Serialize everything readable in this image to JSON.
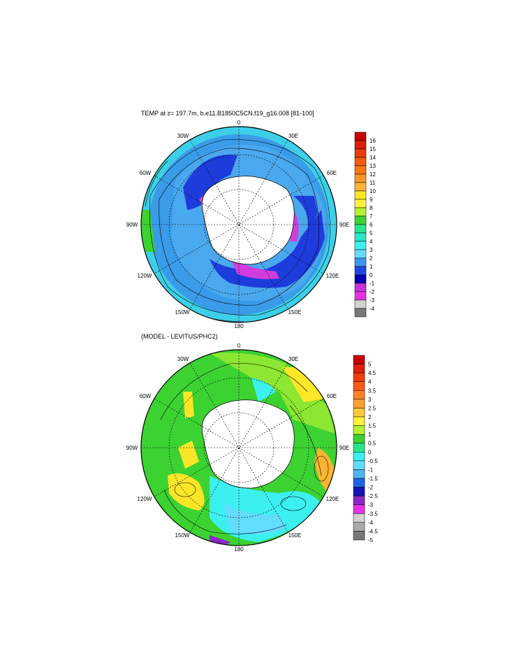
{
  "panels": [
    {
      "title": "TEMP at z= 197.7m, b.e11.B1850C5CN.f19_g16.008 [81-100]",
      "lon_labels": [
        "0",
        "30E",
        "60E",
        "90E",
        "120E",
        "150E",
        "180",
        "150W",
        "120W",
        "90W",
        "60W",
        "30W"
      ],
      "colorbar": {
        "labels": [
          "16",
          "15",
          "14",
          "13",
          "12",
          "11",
          "10",
          "9",
          "8",
          "7",
          "6",
          "5",
          "4",
          "3",
          "2",
          "1",
          "0",
          "-1",
          "-2",
          "-3",
          "-4"
        ],
        "colors": [
          "#c80000",
          "#dc1e0a",
          "#e83c0a",
          "#f05a0a",
          "#f87814",
          "#fa9628",
          "#fcb432",
          "#fce628",
          "#fff03c",
          "#b4f032",
          "#3cd232",
          "#28e68c",
          "#28e6c8",
          "#3cf0f0",
          "#64dcff",
          "#3c96f0",
          "#1e46e6",
          "#0000b4",
          "#c832dc",
          "#e632e6",
          "#d2d2d2",
          "#787878"
        ]
      }
    },
    {
      "title": "(MODEL - LEVITUS/PHC2)",
      "lon_labels": [
        "0",
        "30E",
        "60E",
        "90E",
        "120E",
        "150E",
        "180",
        "150W",
        "120W",
        "90W",
        "60W",
        "30W"
      ],
      "colorbar": {
        "labels": [
          "5",
          "4.5",
          "4",
          "3.5",
          "3",
          "2.5",
          "2",
          "1.5",
          "1",
          "0.5",
          "0",
          "-0.5",
          "-1",
          "-1.5",
          "-2",
          "-2.5",
          "-3",
          "-3.5",
          "-4",
          "-4.5",
          "-5"
        ],
        "colors": [
          "#c80000",
          "#e01e0a",
          "#f03c0a",
          "#f85a14",
          "#fa8228",
          "#fca032",
          "#fcc83c",
          "#fff03c",
          "#b4f032",
          "#3cd232",
          "#28e68c",
          "#3cf0f0",
          "#64dcff",
          "#50b4f0",
          "#1e64e6",
          "#1414b4",
          "#8c28c8",
          "#e632e6",
          "#d2d2d2",
          "#aaaaaa",
          "#787878"
        ]
      }
    }
  ]
}
